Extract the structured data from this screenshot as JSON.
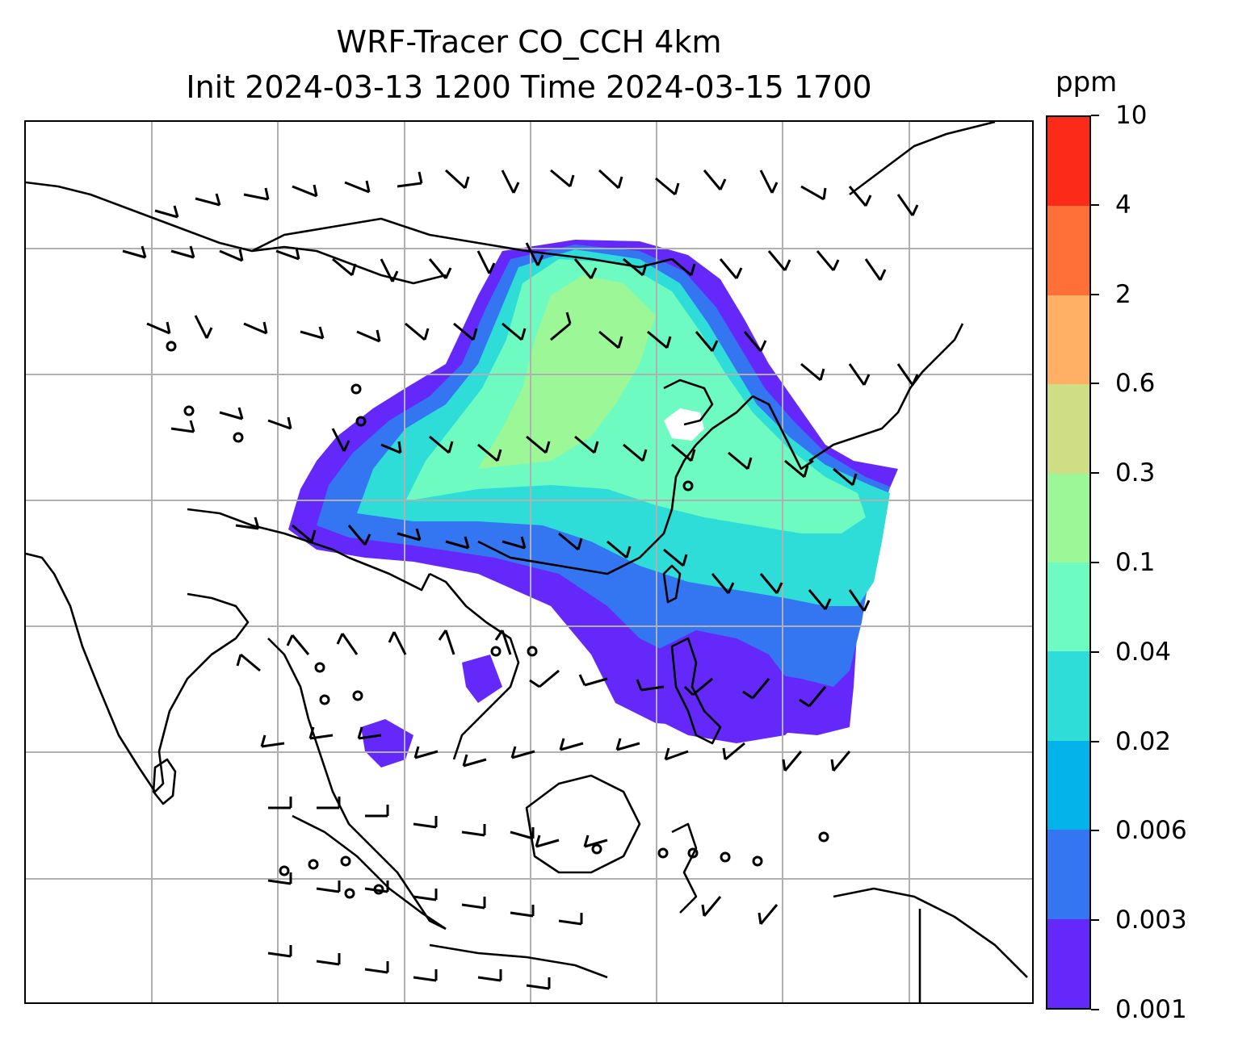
{
  "map": {
    "title_line1": "WRF-Tracer CO_CCH 4km",
    "title_line2": "Init 2024-03-13 1200 Time 2024-03-15 1700",
    "field": "CO_CCH tracer concentration with wind barbs",
    "gridlines": true
  },
  "colorbar": {
    "unit": "ppm",
    "tick_labels": [
      "0.001",
      "0.003",
      "0.006",
      "0.02",
      "0.04",
      "0.1",
      "0.3",
      "0.6",
      "2",
      "4",
      "10"
    ],
    "colors": [
      "#6528fa",
      "#3475f2",
      "#04b3ea",
      "#2edcd8",
      "#6dfbc2",
      "#9cf896",
      "#cfde85",
      "#ffb064",
      "#ff7039",
      "#fc2b19"
    ]
  }
}
